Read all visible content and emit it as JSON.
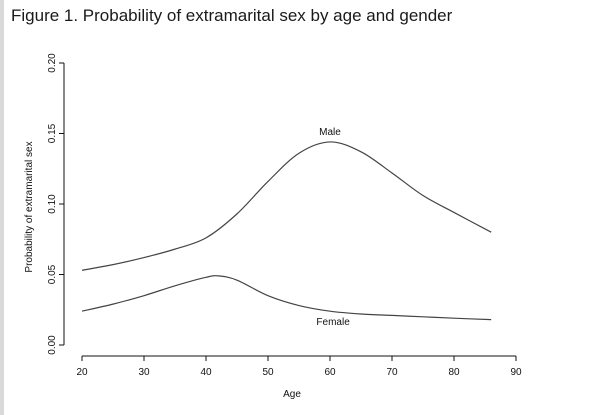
{
  "figure_title": "Figure 1. Probability of extramarital sex by age and gender",
  "chart_data": {
    "type": "line",
    "title": "",
    "xlabel": "Age",
    "ylabel": "Probability of extramarital sex",
    "xlim": [
      20,
      90
    ],
    "ylim": [
      0.0,
      0.2
    ],
    "x_ticks": [
      "20",
      "30",
      "40",
      "50",
      "60",
      "70",
      "80",
      "90"
    ],
    "y_ticks": [
      "0.00",
      "0.05",
      "0.10",
      "0.15",
      "0.20"
    ],
    "grid": false,
    "legend": "none",
    "series": [
      {
        "name": "Male",
        "x": [
          20,
          25,
          30,
          35,
          40,
          45,
          50,
          55,
          60,
          65,
          70,
          75,
          80,
          86
        ],
        "y": [
          0.053,
          0.057,
          0.062,
          0.068,
          0.076,
          0.093,
          0.116,
          0.136,
          0.144,
          0.137,
          0.122,
          0.106,
          0.094,
          0.08
        ]
      },
      {
        "name": "Female",
        "x": [
          20,
          25,
          30,
          35,
          40,
          42,
          45,
          50,
          55,
          60,
          65,
          70,
          75,
          80,
          86
        ],
        "y": [
          0.024,
          0.029,
          0.035,
          0.042,
          0.048,
          0.049,
          0.046,
          0.035,
          0.028,
          0.024,
          0.022,
          0.021,
          0.02,
          0.019,
          0.018
        ]
      }
    ]
  }
}
